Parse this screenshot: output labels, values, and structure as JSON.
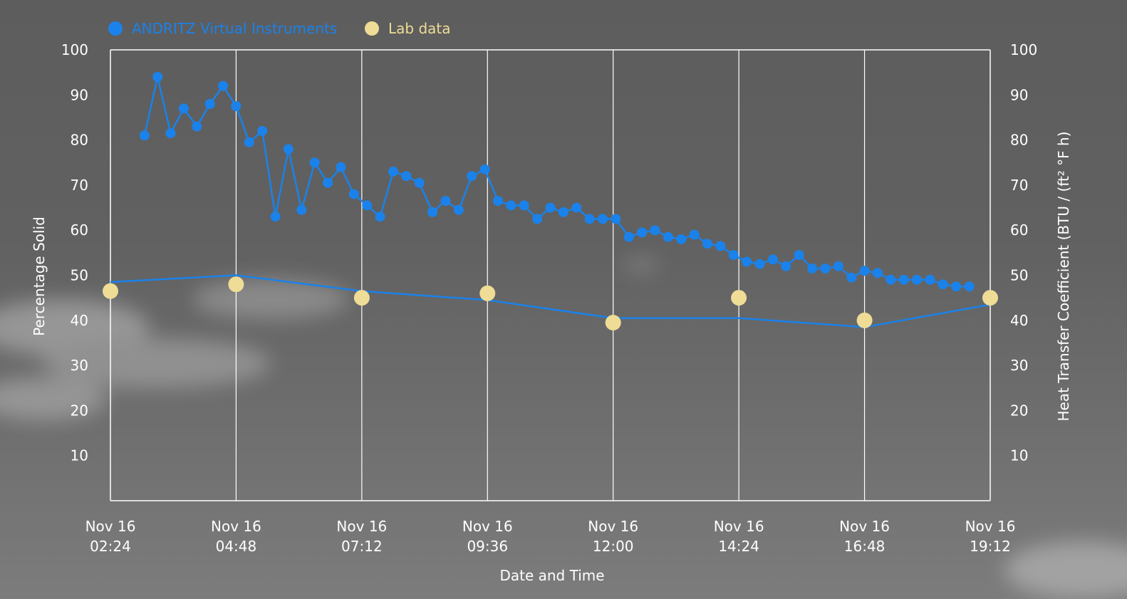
{
  "chart_data": {
    "type": "line",
    "title": "",
    "xlabel": "Date and Time",
    "ylabel_left": "Percentage Solid",
    "ylabel_right": "Heat Transfer Coefficient (BTU / (ft² °F h)",
    "ylim": [
      0,
      100
    ],
    "y_ticks": [
      10,
      20,
      30,
      40,
      50,
      60,
      70,
      80,
      90,
      100
    ],
    "x_range_hours": [
      2.4,
      19.2
    ],
    "x_ticks": [
      {
        "h": 2.4,
        "line1": "Nov 16",
        "line2": "02:24"
      },
      {
        "h": 4.8,
        "line1": "Nov 16",
        "line2": "04:48"
      },
      {
        "h": 7.2,
        "line1": "Nov 16",
        "line2": "07:12"
      },
      {
        "h": 9.6,
        "line1": "Nov 16",
        "line2": "09:36"
      },
      {
        "h": 12.0,
        "line1": "Nov 16",
        "line2": "12:00"
      },
      {
        "h": 14.4,
        "line1": "Nov 16",
        "line2": "14:24"
      },
      {
        "h": 16.8,
        "line1": "Nov 16",
        "line2": "16:48"
      },
      {
        "h": 19.2,
        "line1": "Nov 16",
        "line2": "19:12"
      }
    ],
    "grid": "vertical",
    "legend_position": "top-left",
    "series": [
      {
        "name": "ANDRITZ Virtual Instruments",
        "color": "#1a82ea",
        "markers": true,
        "points": [
          [
            3.05,
            81
          ],
          [
            3.3,
            94
          ],
          [
            3.55,
            81.5
          ],
          [
            3.8,
            87
          ],
          [
            4.05,
            83
          ],
          [
            4.3,
            88
          ],
          [
            4.55,
            92
          ],
          [
            4.8,
            87.5
          ],
          [
            5.05,
            79.5
          ],
          [
            5.3,
            82
          ],
          [
            5.55,
            63
          ],
          [
            5.8,
            78
          ],
          [
            6.05,
            64.5
          ],
          [
            6.3,
            75
          ],
          [
            6.55,
            70.5
          ],
          [
            6.8,
            74
          ],
          [
            7.05,
            68
          ],
          [
            7.3,
            65.5
          ],
          [
            7.55,
            63
          ],
          [
            7.8,
            73
          ],
          [
            8.05,
            72
          ],
          [
            8.3,
            70.5
          ],
          [
            8.55,
            64
          ],
          [
            8.8,
            66.5
          ],
          [
            9.05,
            64.5
          ],
          [
            9.3,
            72
          ],
          [
            9.55,
            73.5
          ],
          [
            9.8,
            66.5
          ],
          [
            10.05,
            65.5
          ],
          [
            10.3,
            65.5
          ],
          [
            10.55,
            62.5
          ],
          [
            10.8,
            65
          ],
          [
            11.05,
            64
          ],
          [
            11.3,
            65
          ],
          [
            11.55,
            62.5
          ],
          [
            11.8,
            62.5
          ],
          [
            12.05,
            62.5
          ],
          [
            12.3,
            58.5
          ],
          [
            12.55,
            59.5
          ],
          [
            12.8,
            60
          ],
          [
            13.05,
            58.5
          ],
          [
            13.3,
            58
          ],
          [
            13.55,
            59
          ],
          [
            13.8,
            57
          ],
          [
            14.05,
            56.5
          ],
          [
            14.3,
            54.5
          ],
          [
            14.55,
            53
          ],
          [
            14.8,
            52.5
          ],
          [
            15.05,
            53.5
          ],
          [
            15.3,
            52
          ],
          [
            15.55,
            54.5
          ],
          [
            15.8,
            51.5
          ],
          [
            16.05,
            51.5
          ],
          [
            16.3,
            52
          ],
          [
            16.55,
            49.5
          ],
          [
            16.8,
            51
          ],
          [
            17.05,
            50.5
          ],
          [
            17.3,
            49
          ],
          [
            17.55,
            49
          ],
          [
            17.8,
            49
          ],
          [
            18.05,
            49
          ],
          [
            18.3,
            48
          ],
          [
            18.55,
            47.5
          ],
          [
            18.8,
            47.5
          ]
        ]
      },
      {
        "name": "Lab data",
        "color": "#efdc96",
        "markers": true,
        "points": [
          [
            2.4,
            46.5
          ],
          [
            4.8,
            48
          ],
          [
            7.2,
            45
          ],
          [
            9.6,
            46
          ],
          [
            12.0,
            39.5
          ],
          [
            14.4,
            45
          ],
          [
            16.8,
            40
          ],
          [
            19.2,
            45
          ]
        ]
      },
      {
        "name": "",
        "color": "#1a82ea",
        "markers": false,
        "points": [
          [
            2.4,
            48.5
          ],
          [
            4.8,
            50
          ],
          [
            7.2,
            46.5
          ],
          [
            9.6,
            44.5
          ],
          [
            12.0,
            40.5
          ],
          [
            14.4,
            40.5
          ],
          [
            16.8,
            38.5
          ],
          [
            19.2,
            43.5
          ]
        ]
      }
    ]
  },
  "colors": {
    "virtual": "#1a82ea",
    "lab": "#efdc96",
    "text": "#ffffff",
    "axis": "#ffffff"
  }
}
